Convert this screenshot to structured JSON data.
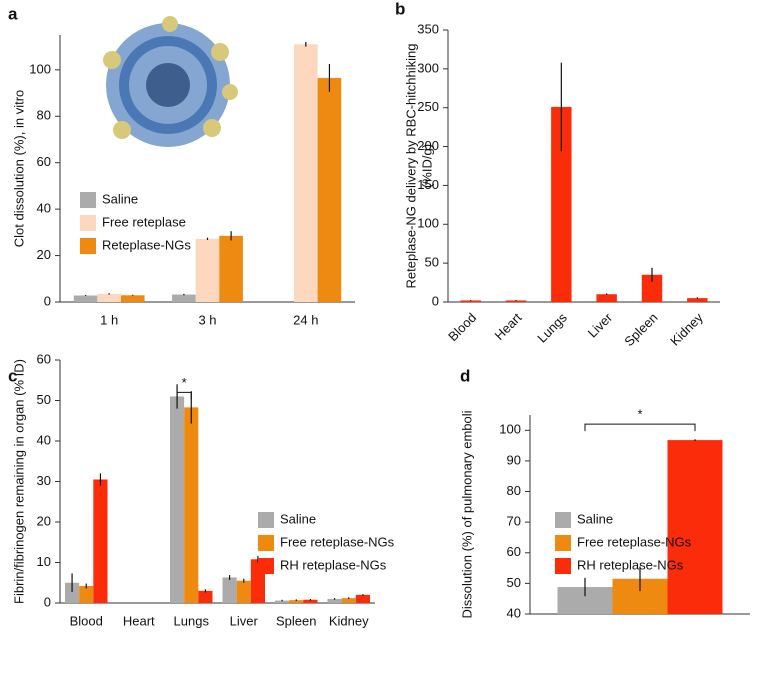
{
  "chart_data": [
    {
      "type": "bar",
      "panel_label": "a",
      "y_label": "Clot dissolution (%), in vitro",
      "categories": [
        "1 h",
        "3 h",
        "24 h"
      ],
      "series": [
        {
          "name": "Saline",
          "color": "#ababab",
          "values": [
            2.8,
            3.2,
            0
          ],
          "errors": [
            0.2,
            0.3,
            0
          ]
        },
        {
          "name": "Free reteplase",
          "color": "#fcd8bf",
          "values": [
            3.5,
            27.2,
            111
          ],
          "errors": [
            0.3,
            0.5,
            1
          ]
        },
        {
          "name": "Reteplase-NGs",
          "color": "#ee8a10",
          "values": [
            2.9,
            28.5,
            96.5
          ],
          "errors": [
            0.2,
            2,
            6
          ]
        }
      ],
      "ylim": [
        0,
        115
      ],
      "yticks": [
        0,
        20,
        40,
        60,
        80,
        100
      ]
    },
    {
      "type": "bar",
      "panel_label": "b",
      "y_label": [
        "Reteplase-NG delivery by RBC-hitchhiking",
        "(%ID/g)"
      ],
      "categories": [
        "Blood",
        "Heart",
        "Lungs",
        "Liver",
        "Spleen",
        "Kidney"
      ],
      "values": [
        2,
        2,
        251,
        10,
        35,
        5
      ],
      "errors": [
        0.5,
        0.5,
        57,
        1,
        9,
        1
      ],
      "color": "#fb2c0a",
      "ylim": [
        0,
        350
      ],
      "yticks": [
        0,
        50,
        100,
        150,
        200,
        250,
        300,
        350
      ]
    },
    {
      "type": "bar",
      "panel_label": "c",
      "y_label": "Fibrin/fibrinogen remaining in organ (% ID)",
      "annotation": "*",
      "categories": [
        "Blood",
        "Heart",
        "Lungs",
        "Liver",
        "Spleen",
        "Kidney"
      ],
      "series": [
        {
          "name": "Saline",
          "color": "#ababab",
          "values": [
            5,
            0,
            51,
            6.3,
            0.6,
            1
          ],
          "errors": [
            2.3,
            0,
            3,
            0.6,
            0.2,
            0.2
          ]
        },
        {
          "name": "Free reteplase-NGs",
          "color": "#ee8a10",
          "values": [
            4.2,
            0,
            48.3,
            5.5,
            0.7,
            1.2
          ],
          "errors": [
            0.6,
            0,
            4,
            0.5,
            0.2,
            0.2
          ]
        },
        {
          "name": "RH reteplase-NGs",
          "color": "#fb2c0a",
          "values": [
            30.5,
            0,
            3,
            10.8,
            0.8,
            2
          ],
          "errors": [
            1.5,
            0,
            0.4,
            0.8,
            0.2,
            0.2
          ]
        }
      ],
      "ylim": [
        0,
        60
      ],
      "yticks": [
        0,
        10,
        20,
        30,
        40,
        50,
        60
      ]
    },
    {
      "type": "bar",
      "panel_label": "d",
      "y_label": "Dissolution (%) of pulmonary emboli",
      "annotation": "*",
      "categories": [
        null
      ],
      "series": [
        {
          "name": "Saline",
          "color": "#ababab",
          "values": [
            48.8
          ],
          "errors": [
            3
          ]
        },
        {
          "name": "Free reteplase-NGs",
          "color": "#ee8a10",
          "values": [
            51.5
          ],
          "errors": [
            4
          ]
        },
        {
          "name": "RH reteplase-NGs",
          "color": "#fb2c0a",
          "values": [
            96.8
          ],
          "errors": [
            0.3
          ]
        }
      ],
      "ylim": [
        40,
        105
      ],
      "yticks": [
        40,
        50,
        60,
        70,
        80,
        90,
        100
      ]
    }
  ]
}
